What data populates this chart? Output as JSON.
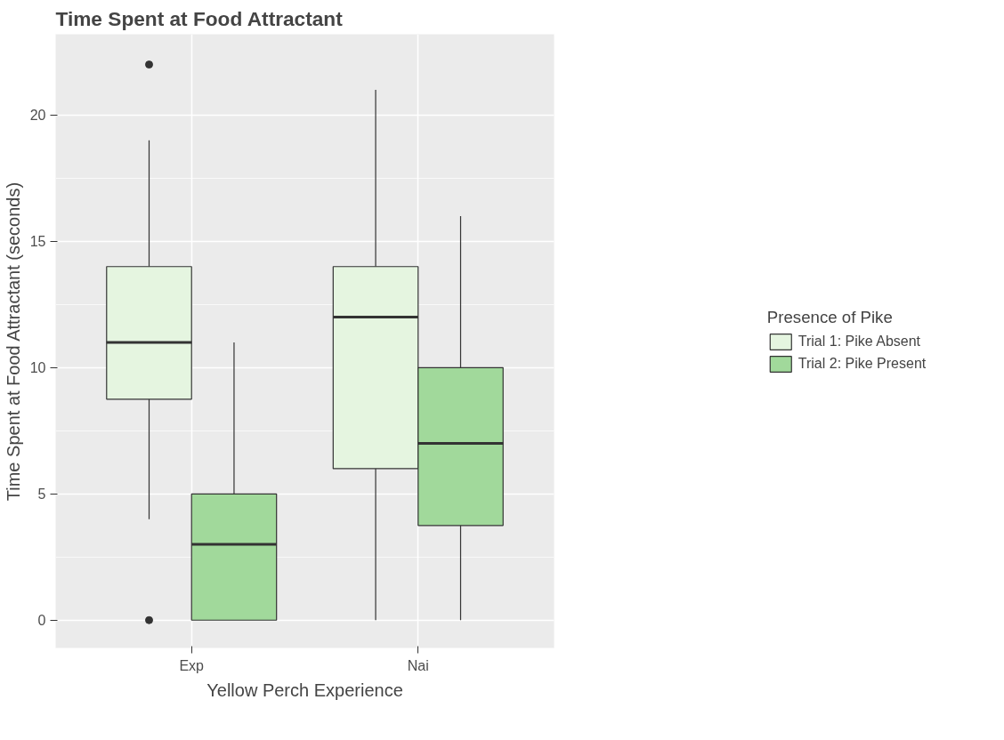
{
  "chart_data": {
    "type": "box",
    "title": "Time Spent at Food Attractant",
    "xlabel": "Yellow Perch Experience",
    "ylabel": "Time Spent at Food Attractant (seconds)",
    "legend_title": "Presence of Pike",
    "categories": [
      "Exp",
      "Nai"
    ],
    "ylim": [
      -1.1,
      23.2
    ],
    "yticks": [
      0,
      5,
      10,
      15,
      20
    ],
    "grid": true,
    "legend": "right",
    "series": [
      {
        "name": "Trial 1: Pike Absent",
        "color": "#e5f5e0",
        "boxes": [
          {
            "low": 4,
            "q1": 8.75,
            "median": 11,
            "q3": 14,
            "high": 19,
            "outliers": [
              22,
              0
            ]
          },
          {
            "low": 0,
            "q1": 6,
            "median": 12,
            "q3": 14,
            "high": 21
          }
        ]
      },
      {
        "name": "Trial 2: Pike Present",
        "color": "#a1d99b",
        "boxes": [
          {
            "low": 0,
            "q1": 0,
            "median": 3,
            "q3": 5,
            "high": 11
          },
          {
            "low": 0,
            "q1": 3.75,
            "median": 7,
            "q3": 10,
            "high": 16
          }
        ]
      }
    ]
  }
}
